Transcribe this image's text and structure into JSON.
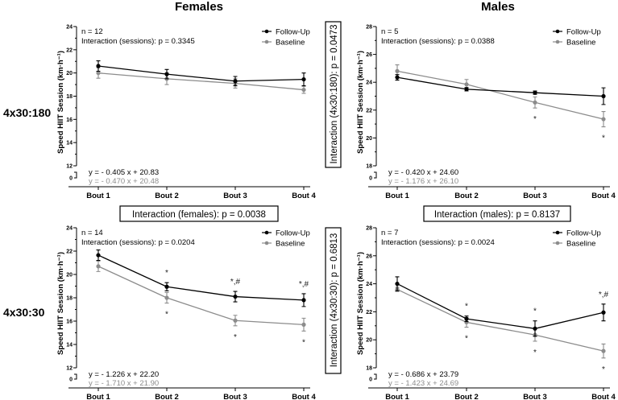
{
  "columns": {
    "females": "Females",
    "males": "Males"
  },
  "rows": {
    "top": "4x30:180",
    "bottom": "4x30:30"
  },
  "boxes": {
    "females": "Interaction (females): p = 0.0038",
    "males": "Interaction (males): p = 0.8137",
    "males_4x30_180": "Interaction (4x30:180): p = 0.0473",
    "males_4x30_30": "Interaction (4x30:30): p = 0.6813"
  },
  "colors": {
    "follow_up": "#000000",
    "baseline": "#8c8c8c"
  },
  "chart_data": [
    {
      "type": "line",
      "panel": "Females 4x30:180",
      "categories": [
        "Bout 1",
        "Bout 2",
        "Bout 3",
        "Bout 4"
      ],
      "ylabel": "Speed HIIT Session (km·h⁻¹)",
      "ylim": [
        12,
        24
      ],
      "yticks": [
        12,
        14,
        16,
        18,
        20,
        22,
        24
      ],
      "ybreak_tick": "0",
      "n_label": "n = 12",
      "interaction_label": "Interaction (sessions): p = 0.3345",
      "legend": [
        "Follow-Up",
        "Baseline"
      ],
      "legend_position": "top-right",
      "series": [
        {
          "name": "Follow-Up",
          "values": [
            20.6,
            19.9,
            19.3,
            19.45
          ],
          "errors": [
            0.45,
            0.4,
            0.4,
            0.55
          ],
          "equation": "y = - 0.405 x + 20.83",
          "annotations": [
            "",
            "",
            "",
            ""
          ]
        },
        {
          "name": "Baseline",
          "values": [
            20.0,
            19.5,
            19.1,
            18.55
          ],
          "errors": [
            0.45,
            0.5,
            0.4,
            0.3
          ],
          "equation": "y = - 0.470 x + 20.48",
          "annotations": [
            "",
            "",
            "",
            ""
          ]
        }
      ]
    },
    {
      "type": "line",
      "panel": "Males 4x30:180",
      "categories": [
        "Bout 1",
        "Bout 2",
        "Bout 3",
        "Bout 4"
      ],
      "ylabel": "Speed HIIT Session (km·h⁻¹)",
      "ylim": [
        18,
        28
      ],
      "yticks": [
        18,
        20,
        22,
        24,
        26,
        28
      ],
      "ybreak_tick": "0",
      "n_label": "n = 5",
      "interaction_label": "Interaction (sessions): p = 0.0388",
      "legend": [
        "Follow-Up",
        "Baseline"
      ],
      "legend_position": "top-right",
      "series": [
        {
          "name": "Follow-Up",
          "values": [
            24.35,
            23.5,
            23.25,
            23.0
          ],
          "errors": [
            0.2,
            0.12,
            0.12,
            0.6
          ],
          "equation": "y = - 0.420 x + 24.60",
          "annotations": [
            "",
            "",
            "",
            ""
          ]
        },
        {
          "name": "Baseline",
          "values": [
            24.8,
            23.85,
            22.55,
            21.35
          ],
          "errors": [
            0.45,
            0.35,
            0.4,
            0.55
          ],
          "equation": "y = - 1.176 x + 26.10",
          "annotations": [
            "",
            "",
            "*",
            "*"
          ]
        }
      ]
    },
    {
      "type": "line",
      "panel": "Females 4x30:30",
      "categories": [
        "Bout 1",
        "Bout 2",
        "Bout 3",
        "Bout 4"
      ],
      "ylabel": "Speed HIIT Session (km·h⁻¹)",
      "ylim": [
        12,
        24
      ],
      "yticks": [
        12,
        14,
        16,
        18,
        20,
        22,
        24
      ],
      "ybreak_tick": "0",
      "n_label": "n = 14",
      "interaction_label": "Interaction (sessions): p = 0.0204",
      "legend": [
        "Follow-Up",
        "Baseline"
      ],
      "legend_position": "top-right",
      "series": [
        {
          "name": "Follow-Up",
          "values": [
            21.65,
            18.95,
            18.1,
            17.8
          ],
          "errors": [
            0.45,
            0.35,
            0.45,
            0.55
          ],
          "equation": "y = - 1.226 x + 22.20",
          "annotations": [
            "",
            "*",
            "*,#",
            "*,#"
          ]
        },
        {
          "name": "Baseline",
          "values": [
            20.7,
            18.0,
            16.05,
            15.7
          ],
          "errors": [
            0.45,
            0.45,
            0.45,
            0.55
          ],
          "equation": "y = - 1.710 x + 21.90",
          "annotations": [
            "",
            "*",
            "*",
            "*"
          ]
        }
      ]
    },
    {
      "type": "line",
      "panel": "Males 4x30:30",
      "categories": [
        "Bout 1",
        "Bout 2",
        "Bout 3",
        "Bout 4"
      ],
      "ylabel": "Speed HIIT Session (km·h⁻¹)",
      "ylim": [
        18,
        28
      ],
      "yticks": [
        18,
        20,
        22,
        24,
        26,
        28
      ],
      "ybreak_tick": "0",
      "n_label": "n = 7",
      "interaction_label": "Interaction (sessions): p = 0.0024",
      "legend": [
        "Follow-Up",
        "Baseline"
      ],
      "legend_position": "top-right",
      "series": [
        {
          "name": "Follow-Up",
          "values": [
            24.0,
            21.5,
            20.8,
            21.95
          ],
          "errors": [
            0.5,
            0.2,
            0.55,
            0.6
          ],
          "equation": "y = - 0.686 x + 23.79",
          "annotations": [
            "",
            "*",
            "*",
            "*,#"
          ]
        },
        {
          "name": "Baseline",
          "values": [
            23.6,
            21.25,
            20.35,
            19.2
          ],
          "errors": [
            0.15,
            0.35,
            0.45,
            0.5
          ],
          "equation": "y = - 1.423 x + 24.69",
          "annotations": [
            "",
            "*",
            "*",
            "*"
          ]
        }
      ]
    }
  ]
}
